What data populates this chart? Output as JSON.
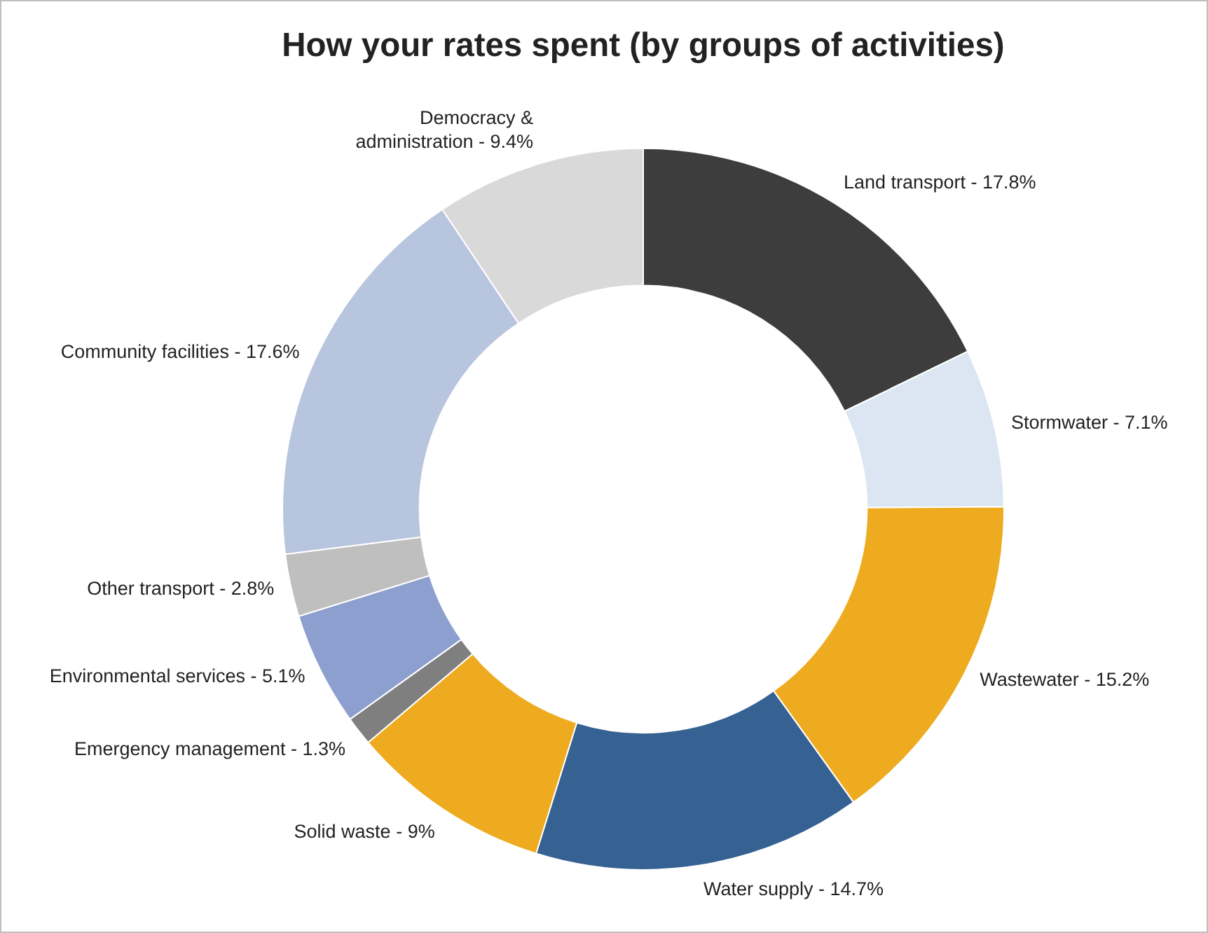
{
  "chart_data": {
    "type": "donut",
    "title": "How your rates spent (by groups of activities)",
    "categories": [
      "Land transport - 17.8%",
      "Stormwater - 7.1%",
      "Wastewater - 15.2%",
      "Water supply - 14.7%",
      "Solid waste - 9%",
      "Emergency management - 1.3%",
      "Environmental services - 5.1%",
      "Other transport - 2.8%",
      "Community facilities - 17.6%",
      "Democracy & administration - 9.4%"
    ],
    "values": [
      17.8,
      7.1,
      15.2,
      14.7,
      9,
      1.3,
      5.1,
      2.8,
      17.6,
      9.4
    ],
    "colors": [
      "#3d3d3d",
      "#dce6f2",
      "#eeab1f",
      "#356193",
      "#eeab1f",
      "#7f7f7f",
      "#8d9fcf",
      "#bfbfbf",
      "#b8c5de",
      "#d9d9d9"
    ],
    "legend": false
  }
}
